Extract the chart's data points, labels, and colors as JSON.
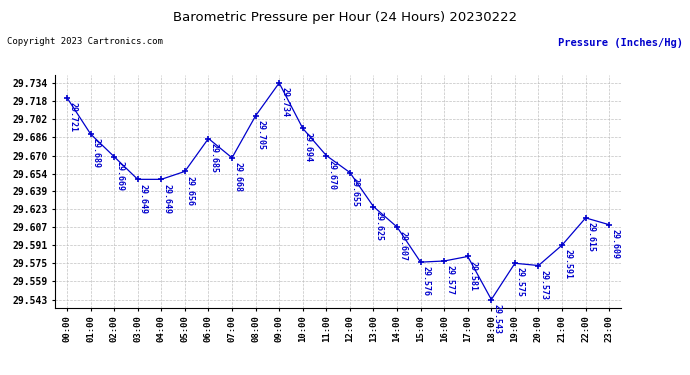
{
  "title": "Barometric Pressure per Hour (24 Hours) 20230222",
  "ylabel": "Pressure (Inches/Hg)",
  "copyright_text": "Copyright 2023 Cartronics.com",
  "hours": [
    "00:00",
    "01:00",
    "02:00",
    "03:00",
    "04:00",
    "05:00",
    "06:00",
    "07:00",
    "08:00",
    "09:00",
    "10:00",
    "11:00",
    "12:00",
    "13:00",
    "14:00",
    "15:00",
    "16:00",
    "17:00",
    "18:00",
    "19:00",
    "20:00",
    "21:00",
    "22:00",
    "23:00"
  ],
  "values": [
    29.721,
    29.689,
    29.669,
    29.649,
    29.649,
    29.656,
    29.685,
    29.668,
    29.705,
    29.734,
    29.694,
    29.67,
    29.655,
    29.625,
    29.607,
    29.576,
    29.577,
    29.581,
    29.543,
    29.575,
    29.573,
    29.591,
    29.615,
    29.609
  ],
  "line_color": "#0000cc",
  "marker": "+",
  "marker_size": 5,
  "label_color": "#0000cc",
  "title_color": "#000000",
  "ylabel_color": "#0000cc",
  "copyright_color": "#000000",
  "background_color": "#ffffff",
  "grid_color": "#bbbbbb",
  "ytick_labels": [
    29.734,
    29.718,
    29.702,
    29.686,
    29.67,
    29.654,
    29.639,
    29.623,
    29.607,
    29.591,
    29.575,
    29.559,
    29.543
  ],
  "ymin": 29.536,
  "ymax": 29.741
}
